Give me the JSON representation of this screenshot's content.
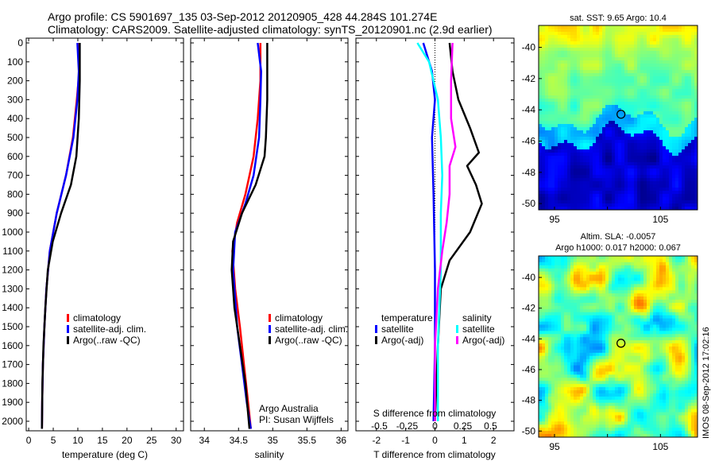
{
  "header": {
    "line1": "Argo profile: CS 5901697_135 03-Sep-2012 20120905_428 44.284S 101.274E",
    "line2": "Climatology: CARS2009. Satellite-adjusted climatology: synTS_20120901.nc (2.9d earlier)"
  },
  "footer_stamp": "IMOS 08-Sep-2012 17:02:16",
  "credit": {
    "line1": "Argo Australia",
    "line2": "PI: Susan Wijffels"
  },
  "colors": {
    "climatology": "#ff0000",
    "satellite": "#0000ff",
    "argo": "#000000",
    "satellite_s": "#00ffff",
    "argo_s": "#ff00ff"
  },
  "chart_data": [
    {
      "type": "line",
      "id": "temperature",
      "xlabel": "temperature (deg C)",
      "ylabel": "",
      "xlim": [
        -0.5,
        31.5
      ],
      "ylim": [
        2050,
        0
      ],
      "xticks": [
        0,
        5,
        10,
        15,
        20,
        25,
        30
      ],
      "yticks": [
        0,
        100,
        200,
        300,
        400,
        500,
        600,
        700,
        800,
        900,
        1000,
        1100,
        1200,
        1300,
        1400,
        1500,
        1600,
        1700,
        1800,
        1900,
        2000
      ],
      "legend": [
        "climatology",
        "satellite-adj. clim.",
        "Argo(..raw -QC)"
      ],
      "series": [
        {
          "name": "climatology",
          "color": "#ff0000",
          "points": [
            [
              10.3,
              0
            ],
            [
              10.3,
              150
            ],
            [
              9.8,
              300
            ],
            [
              9.0,
              500
            ],
            [
              7.6,
              700
            ],
            [
              5.7,
              900
            ],
            [
              4.3,
              1100
            ],
            [
              3.6,
              1300
            ],
            [
              3.2,
              1500
            ],
            [
              2.9,
              1700
            ],
            [
              2.75,
              1900
            ],
            [
              2.7,
              2040
            ]
          ]
        },
        {
          "name": "satellite-adj. clim.",
          "color": "#0000ff",
          "points": [
            [
              9.9,
              0
            ],
            [
              10.2,
              150
            ],
            [
              9.9,
              300
            ],
            [
              9.1,
              500
            ],
            [
              7.6,
              700
            ],
            [
              5.7,
              900
            ],
            [
              4.3,
              1100
            ],
            [
              3.6,
              1300
            ],
            [
              3.2,
              1500
            ],
            [
              2.9,
              1700
            ],
            [
              2.75,
              1900
            ],
            [
              2.7,
              2040
            ]
          ]
        },
        {
          "name": "Argo(..raw -QC)",
          "color": "#000000",
          "points": [
            [
              10.4,
              0
            ],
            [
              10.4,
              200
            ],
            [
              10.2,
              400
            ],
            [
              9.7,
              600
            ],
            [
              8.6,
              750
            ],
            [
              6.6,
              900
            ],
            [
              4.9,
              1050
            ],
            [
              3.9,
              1200
            ],
            [
              3.4,
              1400
            ],
            [
              3.0,
              1600
            ],
            [
              2.8,
              1800
            ],
            [
              2.7,
              2040
            ]
          ]
        }
      ]
    },
    {
      "type": "line",
      "id": "salinity",
      "xlabel": "salinity",
      "ylabel": "",
      "xlim": [
        33.8,
        36.1
      ],
      "ylim": [
        2050,
        0
      ],
      "xticks": [
        34,
        34.5,
        35,
        35.5,
        36
      ],
      "legend": [
        "climatology",
        "satellite-adj. clim.",
        "Argo(..raw -QC)"
      ],
      "series": [
        {
          "name": "climatology",
          "color": "#ff0000",
          "points": [
            [
              34.82,
              0
            ],
            [
              34.82,
              200
            ],
            [
              34.78,
              400
            ],
            [
              34.72,
              600
            ],
            [
              34.6,
              800
            ],
            [
              34.48,
              950
            ],
            [
              34.41,
              1100
            ],
            [
              34.45,
              1300
            ],
            [
              34.52,
              1500
            ],
            [
              34.58,
              1700
            ],
            [
              34.64,
              1900
            ],
            [
              34.68,
              2040
            ]
          ]
        },
        {
          "name": "satellite-adj. clim.",
          "color": "#0000ff",
          "points": [
            [
              34.78,
              0
            ],
            [
              34.83,
              150
            ],
            [
              34.82,
              300
            ],
            [
              34.8,
              500
            ],
            [
              34.72,
              700
            ],
            [
              34.6,
              850
            ],
            [
              34.45,
              1000
            ],
            [
              34.42,
              1200
            ],
            [
              34.48,
              1500
            ],
            [
              34.55,
              1700
            ],
            [
              34.62,
              1900
            ],
            [
              34.68,
              2040
            ]
          ]
        },
        {
          "name": "Argo(..raw -QC)",
          "color": "#000000",
          "points": [
            [
              34.92,
              0
            ],
            [
              34.92,
              300
            ],
            [
              34.9,
              500
            ],
            [
              34.88,
              600
            ],
            [
              34.75,
              750
            ],
            [
              34.55,
              900
            ],
            [
              34.42,
              1050
            ],
            [
              34.4,
              1200
            ],
            [
              34.44,
              1400
            ],
            [
              34.52,
              1600
            ],
            [
              34.6,
              1800
            ],
            [
              34.66,
              2040
            ]
          ]
        }
      ]
    },
    {
      "type": "line",
      "id": "difference",
      "xlabel": "T difference from climatology",
      "xlabel_top": "S difference from climatology",
      "xlim": [
        -2.7,
        2.7
      ],
      "ylim": [
        2050,
        0
      ],
      "xticks": [
        -2,
        -1,
        0,
        1,
        2
      ],
      "xticks_top_labels": [
        "-0.5",
        "-0.25",
        "0",
        "0.25",
        "0.5"
      ],
      "legend_title_t": "temperature",
      "legend_title_s": "salinity",
      "legend_t": [
        "satellite",
        "Argo(-adj)"
      ],
      "legend_s": [
        "satellite",
        "Argo(-adj)"
      ],
      "series": [
        {
          "name": "satellite",
          "group": "temperature",
          "color": "#0000ff",
          "points": [
            [
              -0.4,
              0
            ],
            [
              -0.1,
              150
            ],
            [
              0.0,
              300
            ],
            [
              -0.1,
              500
            ],
            [
              -0.05,
              800
            ],
            [
              0.0,
              1200
            ],
            [
              0.0,
              1600
            ],
            [
              -0.05,
              2000
            ]
          ]
        },
        {
          "name": "Argo(-adj)",
          "group": "temperature",
          "color": "#000000",
          "points": [
            [
              0.5,
              0
            ],
            [
              0.6,
              150
            ],
            [
              0.8,
              300
            ],
            [
              1.2,
              450
            ],
            [
              1.5,
              580
            ],
            [
              1.1,
              650
            ],
            [
              1.4,
              750
            ],
            [
              1.6,
              850
            ],
            [
              1.2,
              1000
            ],
            [
              0.5,
              1150
            ],
            [
              0.2,
              1300
            ],
            [
              0.1,
              1600
            ],
            [
              0.0,
              2000
            ]
          ]
        },
        {
          "name": "satellite",
          "group": "salinity",
          "color": "#00ffff",
          "points": [
            [
              -0.6,
              0
            ],
            [
              -0.2,
              100
            ],
            [
              0.1,
              300
            ],
            [
              0.2,
              500
            ],
            [
              0.25,
              700
            ],
            [
              0.2,
              900
            ],
            [
              0.2,
              1200
            ],
            [
              0.1,
              1600
            ],
            [
              0.1,
              2000
            ]
          ]
        },
        {
          "name": "Argo(-adj)",
          "group": "salinity",
          "color": "#ff00ff",
          "points": [
            [
              0.6,
              0
            ],
            [
              0.55,
              200
            ],
            [
              0.55,
              400
            ],
            [
              0.7,
              550
            ],
            [
              0.5,
              650
            ],
            [
              0.5,
              800
            ],
            [
              0.4,
              950
            ],
            [
              0.25,
              1100
            ],
            [
              0.1,
              1300
            ],
            [
              0.0,
              1600
            ],
            [
              0.0,
              2000
            ]
          ]
        }
      ]
    },
    {
      "type": "heatmap",
      "id": "sst_map",
      "title": "sat. SST: 9.65  Argo: 10.4",
      "xlim": [
        93.5,
        108.5
      ],
      "ylim": [
        -50.4,
        -38.6
      ],
      "xticks": [
        95,
        100,
        105
      ],
      "xtick_labels": [
        "95",
        "",
        "105"
      ],
      "yticks": [
        -40,
        -42,
        -44,
        -46,
        -48,
        -50
      ],
      "marker": {
        "lon": 101.274,
        "lat": -44.284
      }
    },
    {
      "type": "heatmap",
      "id": "sla_map",
      "title_line1": "Altim. SLA: -0.0057",
      "title_line2": "Argo h1000: 0.017 h2000: 0.067",
      "xlim": [
        93.5,
        108.5
      ],
      "ylim": [
        -50.4,
        -38.6
      ],
      "xticks": [
        95,
        100,
        105
      ],
      "xtick_labels": [
        "95",
        "",
        "105"
      ],
      "yticks": [
        -40,
        -42,
        -44,
        -46,
        -48,
        -50
      ],
      "marker": {
        "lon": 101.274,
        "lat": -44.284
      }
    }
  ]
}
